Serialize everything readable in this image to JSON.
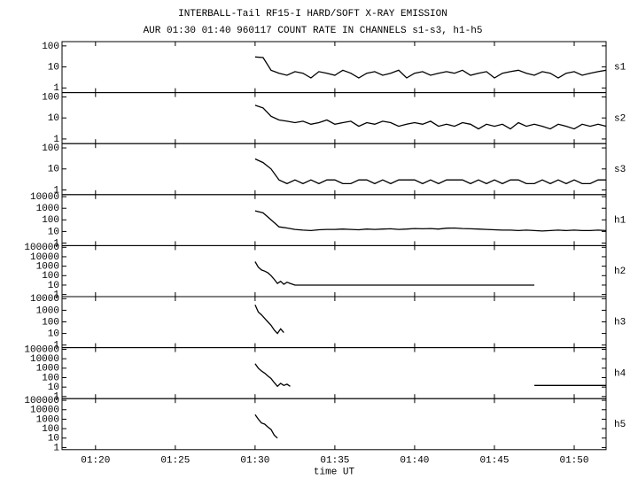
{
  "chart_data": [
    {
      "type": "line",
      "title": "INTERBALL-Tail RF15-I HARD/SOFT X-RAY EMISSION",
      "subtitle": "AUR 01:30 01:40 960117  COUNT RATE IN CHANNELS s1-s3, h1-h5",
      "label": "s1",
      "log_y": true,
      "color": "#000000",
      "xlim": [
        17.9,
        52.0
      ],
      "ylim": [
        0.6,
        160
      ],
      "yticks": [
        1,
        10,
        100
      ],
      "x": [
        30,
        30.5,
        31,
        31.5,
        32,
        32.5,
        33,
        33.5,
        34,
        34.5,
        35,
        35.5,
        36,
        36.5,
        37,
        37.5,
        38,
        38.5,
        39,
        39.5,
        40,
        40.5,
        41,
        41.5,
        42,
        42.5,
        43,
        43.5,
        44,
        44.5,
        45,
        45.5,
        46,
        46.5,
        47,
        47.5,
        48,
        48.5,
        49,
        49.5,
        50,
        50.5,
        51,
        51.5,
        52
      ],
      "values": [
        30,
        28,
        7,
        5,
        4,
        6,
        5,
        3,
        6,
        5,
        4,
        7,
        5,
        3,
        5,
        6,
        4,
        5,
        7,
        3,
        5,
        6,
        4,
        5,
        6,
        5,
        7,
        4,
        5,
        6,
        3,
        5,
        6,
        7,
        5,
        4,
        6,
        5,
        3,
        5,
        6,
        4,
        5,
        6,
        7
      ]
    },
    {
      "type": "line",
      "label": "s2",
      "log_y": true,
      "color": "#000000",
      "xlim": [
        17.9,
        52.0
      ],
      "ylim": [
        0.6,
        160
      ],
      "yticks": [
        1,
        10,
        100
      ],
      "x": [
        30,
        30.5,
        31,
        31.5,
        32,
        32.5,
        33,
        33.5,
        34,
        34.5,
        35,
        35.5,
        36,
        36.5,
        37,
        37.5,
        38,
        38.5,
        39,
        39.5,
        40,
        40.5,
        41,
        41.5,
        42,
        42.5,
        43,
        43.5,
        44,
        44.5,
        45,
        45.5,
        46,
        46.5,
        47,
        47.5,
        48,
        48.5,
        49,
        49.5,
        50,
        50.5,
        51,
        51.5,
        52
      ],
      "values": [
        40,
        30,
        12,
        8,
        7,
        6,
        7,
        5,
        6,
        8,
        5,
        6,
        7,
        4,
        6,
        5,
        7,
        6,
        4,
        5,
        6,
        5,
        7,
        4,
        5,
        4,
        6,
        5,
        3,
        5,
        4,
        5,
        3,
        6,
        4,
        5,
        4,
        3,
        5,
        4,
        3,
        5,
        4,
        5,
        4
      ]
    },
    {
      "type": "line",
      "label": "s3",
      "log_y": true,
      "color": "#000000",
      "xlim": [
        17.9,
        52.0
      ],
      "ylim": [
        0.6,
        160
      ],
      "yticks": [
        1,
        10,
        100
      ],
      "x": [
        30,
        30.5,
        31,
        31.5,
        32,
        32.5,
        33,
        33.5,
        34,
        34.5,
        35,
        35.5,
        36,
        36.5,
        37,
        37.5,
        38,
        38.5,
        39,
        39.5,
        40,
        40.5,
        41,
        41.5,
        42,
        42.5,
        43,
        43.5,
        44,
        44.5,
        45,
        45.5,
        46,
        46.5,
        47,
        47.5,
        48,
        48.5,
        49,
        49.5,
        50,
        50.5,
        51,
        51.5,
        52
      ],
      "values": [
        30,
        20,
        10,
        3,
        2,
        3,
        2,
        3,
        2,
        3,
        3,
        2,
        2,
        3,
        3,
        2,
        3,
        2,
        3,
        3,
        3,
        2,
        3,
        2,
        3,
        3,
        3,
        2,
        3,
        2,
        3,
        2,
        3,
        3,
        2,
        2,
        3,
        2,
        3,
        2,
        3,
        2,
        2,
        3,
        3
      ]
    },
    {
      "type": "line",
      "label": "h1",
      "log_y": true,
      "color": "#000000",
      "xlim": [
        17.9,
        52.0
      ],
      "ylim": [
        0.6,
        15000
      ],
      "yticks": [
        1,
        10,
        100,
        1000,
        10000
      ],
      "x": [
        30,
        30.5,
        31,
        31.5,
        32,
        32.5,
        33,
        33.5,
        34,
        34.5,
        35,
        35.5,
        36,
        36.5,
        37,
        37.5,
        38,
        38.5,
        39,
        39.5,
        40,
        40.5,
        41,
        41.5,
        42,
        42.5,
        43,
        43.5,
        44,
        44.5,
        45,
        45.5,
        46,
        46.5,
        47,
        47.5,
        48,
        48.5,
        49,
        49.5,
        50,
        50.5,
        51,
        51.5,
        52
      ],
      "values": [
        600,
        400,
        100,
        25,
        20,
        15,
        13,
        12,
        14,
        15,
        15,
        16,
        15,
        14,
        16,
        15,
        16,
        17,
        15,
        16,
        18,
        17,
        18,
        16,
        19,
        20,
        18,
        17,
        16,
        15,
        14,
        13,
        13,
        12,
        13,
        12,
        11,
        12,
        13,
        12,
        13,
        12,
        12,
        13,
        12
      ]
    },
    {
      "type": "line",
      "label": "h2",
      "log_y": true,
      "color": "#000000",
      "xlim": [
        17.9,
        52.0
      ],
      "ylim": [
        0.6,
        150000
      ],
      "yticks": [
        1,
        10,
        100,
        1000,
        10000,
        100000
      ],
      "x": [
        30,
        30.2,
        30.4,
        30.6,
        30.8,
        31,
        31.2,
        31.4,
        31.6,
        31.8,
        32,
        32.2,
        32.5,
        47.5
      ],
      "values": [
        3000,
        800,
        400,
        300,
        200,
        100,
        40,
        15,
        25,
        12,
        20,
        15,
        10,
        10
      ]
    },
    {
      "type": "line",
      "label": "h3",
      "log_y": true,
      "color": "#000000",
      "xlim": [
        17.9,
        52.0
      ],
      "ylim": [
        0.6,
        15000
      ],
      "yticks": [
        1,
        10,
        100,
        1000,
        10000
      ],
      "x": [
        30,
        30.2,
        30.4,
        30.6,
        30.8,
        31,
        31.2,
        31.4,
        31.6,
        31.8
      ],
      "values": [
        3000,
        700,
        400,
        200,
        100,
        50,
        20,
        10,
        25,
        12
      ]
    },
    {
      "type": "line",
      "label": "h4",
      "log_y": true,
      "color": "#000000",
      "xlim": [
        17.9,
        52.0
      ],
      "ylim": [
        0.6,
        150000
      ],
      "yticks": [
        1,
        10,
        100,
        1000,
        10000,
        100000
      ],
      "x": [
        30,
        30.2,
        30.4,
        30.6,
        30.8,
        31,
        31.2,
        31.4,
        31.6,
        31.8,
        32,
        32.2,
        null,
        47.5,
        52
      ],
      "values": [
        3000,
        1000,
        500,
        300,
        150,
        80,
        30,
        12,
        25,
        15,
        20,
        12,
        null,
        15,
        15
      ]
    },
    {
      "type": "line",
      "label": "h5",
      "log_y": true,
      "color": "#000000",
      "xlim": [
        17.9,
        52.0
      ],
      "ylim": [
        0.6,
        150000
      ],
      "yticks": [
        1,
        10,
        100,
        1000,
        10000,
        100000
      ],
      "x": [
        30,
        30.2,
        30.4,
        30.6,
        30.8,
        31,
        31.2,
        31.4
      ],
      "values": [
        3000,
        1000,
        400,
        300,
        150,
        80,
        20,
        10
      ],
      "xticks": [
        {
          "value": 20,
          "label": "01:20"
        },
        {
          "value": 25,
          "label": "01:25"
        },
        {
          "value": 30,
          "label": "01:30"
        },
        {
          "value": 35,
          "label": "01:35"
        },
        {
          "value": 40,
          "label": "01:40"
        },
        {
          "value": 45,
          "label": "01:45"
        },
        {
          "value": 50,
          "label": "01:50"
        }
      ],
      "xlabel": "time UT"
    }
  ]
}
